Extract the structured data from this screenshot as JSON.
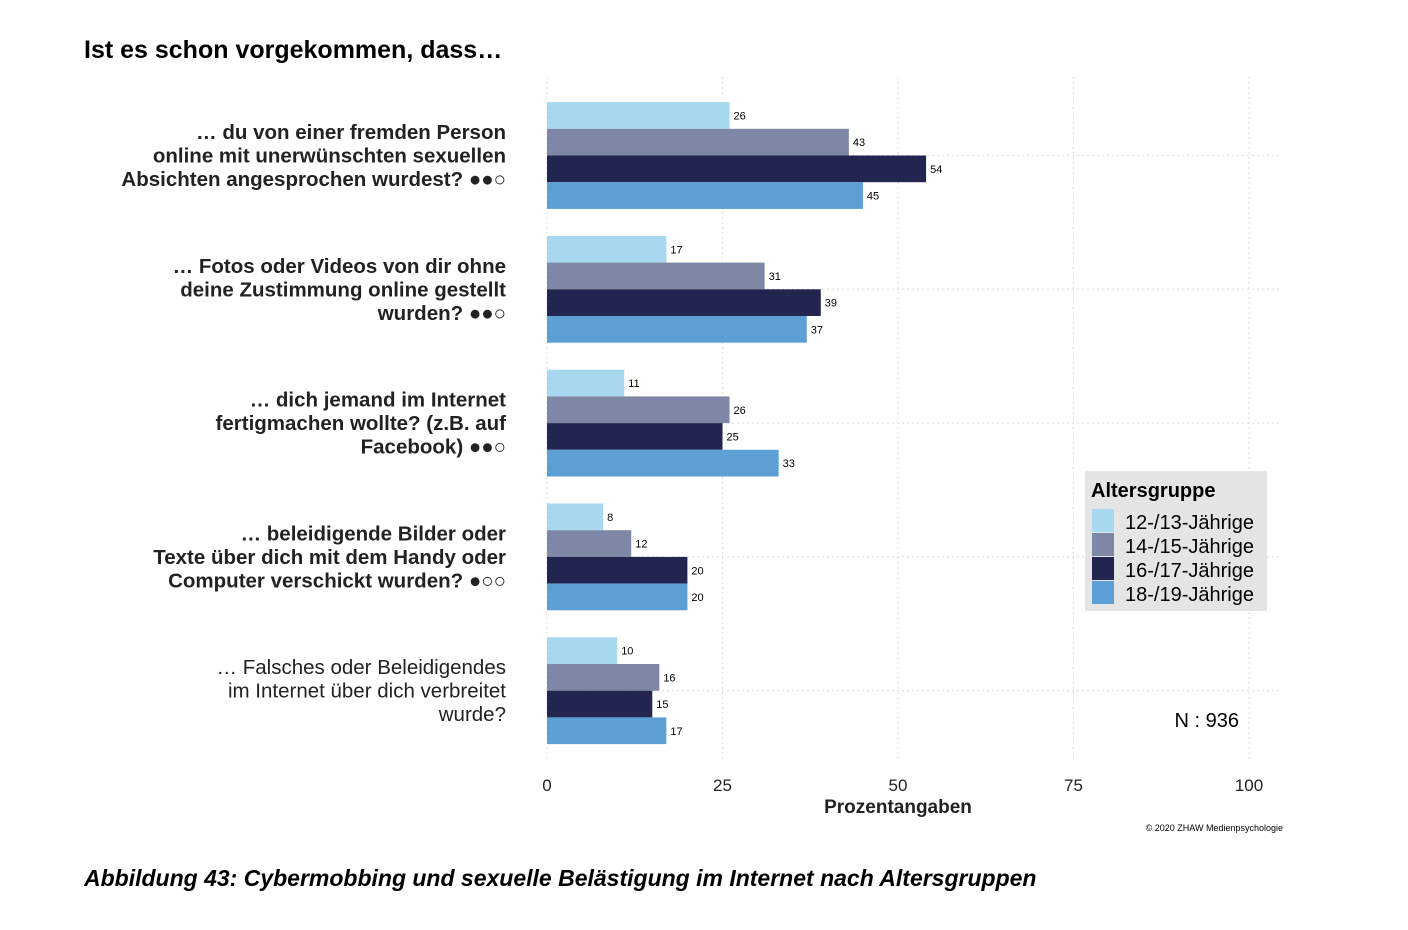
{
  "title": "Ist es schon vorgekommen, dass…",
  "caption": "Abbildung 43: Cybermobbing und sexuelle Belästigung im Internet nach Altersgruppen",
  "chart_data": {
    "type": "bar",
    "orientation": "horizontal",
    "title": "Ist es schon vorgekommen, dass…",
    "xlabel": "Prozentangaben",
    "ylabel": "",
    "xlim": [
      0,
      100
    ],
    "xticks": [
      "0",
      "25",
      "50",
      "75",
      "100"
    ],
    "grid": true,
    "categories": [
      {
        "lines": [
          "… du von einer fremden Person",
          "online mit unerwünschten sexuellen",
          "Absichten angesprochen wurdest? ●●○"
        ],
        "bold": true
      },
      {
        "lines": [
          "… Fotos oder Videos von dir ohne",
          "deine Zustimmung online gestellt",
          "wurden? ●●○"
        ],
        "bold": true
      },
      {
        "lines": [
          "… dich jemand im Internet",
          "fertigmachen wollte? (z.B. auf",
          "Facebook) ●●○"
        ],
        "bold": true
      },
      {
        "lines": [
          "… beleidigende Bilder oder",
          "Texte über dich mit dem Handy oder",
          "Computer verschickt wurden? ●○○"
        ],
        "bold": true
      },
      {
        "lines": [
          "… Falsches oder Beleidigendes",
          "im Internet über dich verbreitet",
          "wurde?"
        ],
        "bold": false
      }
    ],
    "series": [
      {
        "name": "12-/13-Jährige",
        "color": "#a8d8f0",
        "values": [
          26,
          17,
          11,
          8,
          10
        ]
      },
      {
        "name": "14-/15-Jährige",
        "color": "#7e88a6",
        "values": [
          43,
          31,
          26,
          12,
          16
        ]
      },
      {
        "name": "16-/17-Jährige",
        "color": "#232551",
        "values": [
          54,
          39,
          25,
          20,
          15
        ]
      },
      {
        "name": "18-/19-Jährige",
        "color": "#5b9fd4",
        "values": [
          45,
          37,
          33,
          20,
          17
        ]
      }
    ],
    "legend": {
      "title": "Altersgruppe",
      "placement": "right"
    },
    "annotations": {
      "n": "N : 936",
      "copyright": "© 2020 ZHAW Medienpsychologie"
    }
  }
}
